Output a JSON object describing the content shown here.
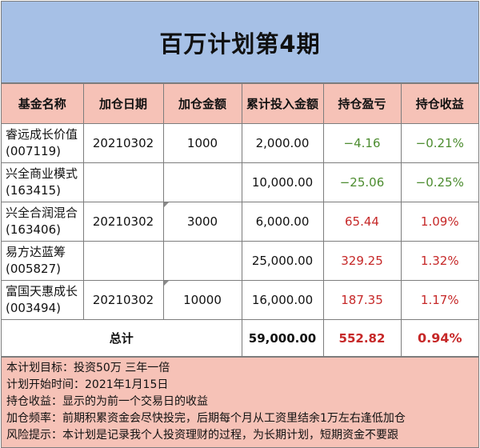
{
  "title": "百万计划第4期",
  "headers": [
    "基金名称",
    "加仓日期",
    "加仓金额",
    "累计投入金额",
    "持仓盈亏",
    "持仓收益"
  ],
  "rows": [
    {
      "name_line1": "睿远成长价值",
      "name_line2": "(007119)",
      "date": "20210302",
      "amount": "1000",
      "cumulative": "2,000.00",
      "pnl": "−4.16",
      "yield": "−0.21%",
      "trend": "neg"
    },
    {
      "name_line1": "兴全商业模式",
      "name_line2": "(163415)",
      "date": "",
      "amount": "",
      "cumulative": "10,000.00",
      "pnl": "−25.06",
      "yield": "−0.25%",
      "trend": "neg"
    },
    {
      "name_line1": "兴全合润混合",
      "name_line2": "(163406)",
      "date": "20210302",
      "amount": "3000",
      "cumulative": "6,000.00",
      "pnl": "65.44",
      "yield": "1.09%",
      "trend": "pos"
    },
    {
      "name_line1": "易方达蓝筹",
      "name_line2": "(005827)",
      "date": "",
      "amount": "",
      "cumulative": "25,000.00",
      "pnl": "329.25",
      "yield": "1.32%",
      "trend": "pos"
    },
    {
      "name_line1": "富国天惠成长",
      "name_line2": "(003494)",
      "date": "20210302",
      "amount": "10000",
      "cumulative": "16,000.00",
      "pnl": "187.35",
      "yield": "1.17%",
      "trend": "pos"
    }
  ],
  "total": {
    "label": "总计",
    "cumulative": "59,000.00",
    "pnl": "552.82",
    "yield": "0.94%"
  },
  "notes": [
    "本计划目标：投资50万 三年一倍",
    "计划开始时间：2021年1月15日",
    "持仓收益：显示的为前一个交易日的收益",
    "加仓频率：前期积累资金会尽快投完，后期每个月从工资里结余1万左右逢低加仓",
    "风险提示：本计划是记录我个人投资理财的过程，为长期计划，短期资金不要跟"
  ],
  "colors": {
    "title_bg": "#a6c0e6",
    "header_bg": "#f6c2b7",
    "gain": "#c62828",
    "loss": "#4c8c2f"
  }
}
